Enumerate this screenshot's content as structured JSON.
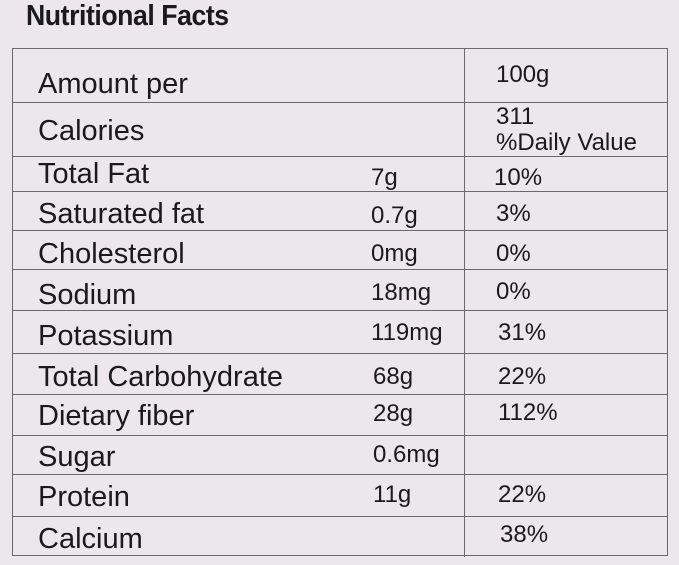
{
  "title": "Nutritional Facts",
  "header": {
    "amount_label": "Amount per",
    "amount_value": "100g",
    "calories_label": "Calories",
    "calories_value": "311",
    "daily_value_label": "%Daily Value"
  },
  "rows": [
    {
      "name": "Total Fat",
      "amount": "7g",
      "dv": "10%"
    },
    {
      "name": "Saturated fat",
      "amount": "0.7g",
      "dv": "3%"
    },
    {
      "name": "Cholesterol",
      "amount": "0mg",
      "dv": "0%"
    },
    {
      "name": "Sodium",
      "amount": "18mg",
      "dv": "0%"
    },
    {
      "name": "Potassium",
      "amount": "119mg",
      "dv": "31%"
    },
    {
      "name": "Total Carbohydrate",
      "amount": "68g",
      "dv": "22%"
    },
    {
      "name": "Dietary fiber",
      "amount": "28g",
      "dv": "112%"
    },
    {
      "name": "Sugar",
      "amount": "0.6mg",
      "dv": ""
    },
    {
      "name": "Protein",
      "amount": "11g",
      "dv": "22%"
    },
    {
      "name": "Calcium",
      "amount": "",
      "dv": "38%"
    }
  ]
}
